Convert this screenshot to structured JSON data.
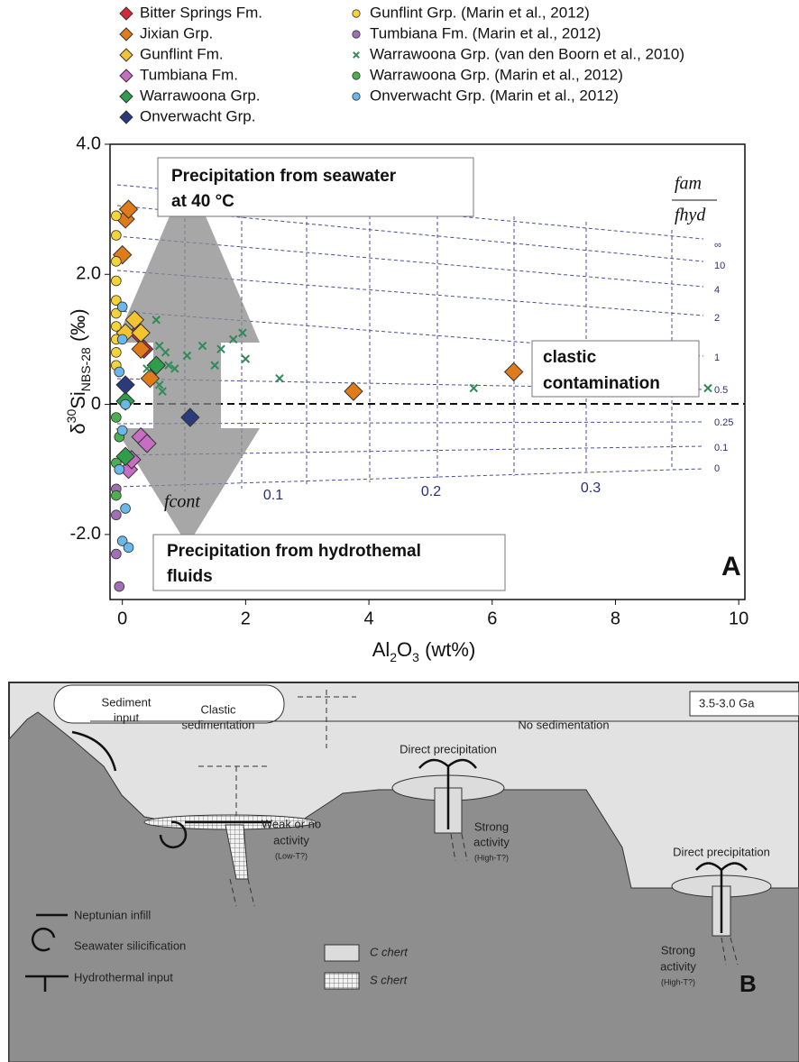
{
  "chart_data": {
    "type": "scatter",
    "xlabel_parts": [
      "Al",
      "2",
      "O",
      "3",
      " (wt%)"
    ],
    "ylabel_parts": [
      "δ",
      "30",
      "Si",
      "NBS-28",
      " (‰)"
    ],
    "xlim": [
      -0.2,
      10.1
    ],
    "ylim": [
      -3,
      4
    ],
    "xticks": [
      0,
      2,
      4,
      6,
      8,
      10
    ],
    "yticks": [
      {
        "value": -2,
        "label": "-2.0"
      },
      0,
      {
        "value": 2,
        "label": "2.0"
      },
      {
        "value": 4,
        "label": "4.0"
      }
    ],
    "panel_label": "A",
    "annotations": {
      "seawater": [
        "Precipitation from seawater",
        "at 40 °C"
      ],
      "hydrothermal": [
        "Precipitation from hydrothemal",
        "fluids"
      ],
      "clastic": [
        "clastic",
        "contamination"
      ],
      "ratio_top": "fam",
      "ratio_bottom": "fhyd",
      "f_cont": "fcont",
      "ratio_labels": [
        "∞",
        "10",
        "4",
        "2",
        "1",
        "0.5",
        "0.25",
        "0.1",
        "0"
      ],
      "cont_labels": [
        "0.1",
        "0.2",
        "0.3"
      ]
    },
    "series": [
      {
        "name": "Bitter Springs Fm.",
        "marker": "diamond",
        "color": "#d62839",
        "x": [
          0.25,
          0.35
        ],
        "values": [
          1.1,
          0.85
        ]
      },
      {
        "name": "Jixian Grp.",
        "marker": "diamond",
        "color": "#e07b1a",
        "x": [
          0.05,
          0.1,
          0.0,
          0.3,
          0.45,
          3.75,
          6.35
        ],
        "values": [
          2.85,
          3.0,
          2.3,
          0.85,
          0.4,
          0.2,
          0.5
        ]
      },
      {
        "name": "Gunflint Fm.",
        "marker": "diamond",
        "color": "#f4c430",
        "x": [
          0.2,
          0.05,
          0.3
        ],
        "values": [
          1.3,
          1.1,
          1.1
        ]
      },
      {
        "name": "Tumbiana Fm.",
        "marker": "diamond",
        "color": "#c86dc4",
        "x": [
          0.3,
          0.4,
          0.1,
          0.15
        ],
        "values": [
          -0.5,
          -0.6,
          -1.0,
          -0.85
        ]
      },
      {
        "name": "Warrawoona Grp.",
        "marker": "diamond",
        "color": "#2e9e4a",
        "x": [
          0.55,
          0.05,
          0.05
        ],
        "values": [
          0.6,
          0.05,
          -0.8
        ]
      },
      {
        "name": "Onverwacht Grp.",
        "marker": "diamond",
        "color": "#2b3a7a",
        "x": [
          0.05,
          1.1
        ],
        "values": [
          0.3,
          -0.2
        ]
      },
      {
        "name": "Gunflint Grp. (Marin et al., 2012)",
        "marker": "circle",
        "color": "#f5d33a",
        "x": [
          -0.1,
          -0.1,
          -0.1,
          -0.1,
          -0.1,
          -0.1,
          -0.1,
          -0.1,
          -0.1,
          -0.1
        ],
        "values": [
          2.9,
          2.6,
          2.2,
          1.9,
          1.6,
          1.4,
          1.2,
          1.0,
          0.8,
          0.6
        ]
      },
      {
        "name": "Tumbiana Fm. (Marin et al., 2012)",
        "marker": "circle",
        "color": "#a06fb5",
        "x": [
          -0.1,
          -0.1,
          -0.1,
          -0.05
        ],
        "values": [
          -1.3,
          -1.7,
          -2.3,
          -2.8
        ]
      },
      {
        "name": "Warrawoona Grp. (van den Boorn et al., 2010)",
        "marker": "x",
        "color": "#2e8b57",
        "x": [
          0.55,
          0.6,
          0.7,
          0.75,
          0.6,
          0.65,
          0.85,
          1.05,
          1.3,
          1.5,
          1.6,
          1.8,
          1.95,
          2.0,
          2.55,
          5.7,
          9.5,
          0.4
        ],
        "values": [
          1.3,
          0.9,
          0.8,
          0.6,
          0.3,
          0.2,
          0.55,
          0.75,
          0.9,
          0.6,
          0.85,
          1.0,
          1.1,
          0.7,
          0.4,
          0.25,
          0.25,
          0.55
        ]
      },
      {
        "name": "Warrawoona Grp. (Marin et al., 2012)",
        "marker": "circle",
        "color": "#4cb050",
        "x": [
          -0.1,
          -0.05,
          -0.1,
          -0.1
        ],
        "values": [
          -0.2,
          -0.5,
          -0.9,
          -1.4
        ]
      },
      {
        "name": "Onverwacht Grp. (Marin et al., 2012)",
        "marker": "circle",
        "color": "#6bb8e8",
        "x": [
          0.0,
          0.0,
          -0.05,
          0.05,
          0.0,
          -0.05,
          0.05,
          0.0,
          0.1
        ],
        "values": [
          1.5,
          1.0,
          0.5,
          0.0,
          -0.4,
          -1.0,
          -1.6,
          -2.1,
          -2.2
        ]
      }
    ]
  },
  "diagram": {
    "age": "3.5-3.0 Ga",
    "panel_label": "B",
    "sediment_input": [
      "Sediment",
      "input"
    ],
    "clastic_sedimentation": [
      "Clastic",
      "sedimentation"
    ],
    "no_sedimentation": "No sedimentation",
    "direct_precipitation": [
      "Direct precipitation",
      "Direct precipitation"
    ],
    "weak_activity": [
      "Weak or no",
      "activity",
      "(Low-T?)"
    ],
    "strong_activity_1": [
      "Strong",
      "activity",
      "(High-T?)"
    ],
    "strong_activity_2": [
      "Strong",
      "activity",
      "(High-T?)"
    ],
    "legend": [
      "Neptunian infill",
      "Seawater silicification",
      "Hydrothermal input",
      "C chert",
      "S chert"
    ]
  }
}
